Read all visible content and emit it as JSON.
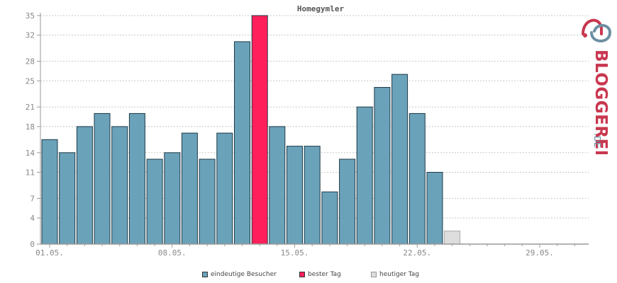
{
  "chart_data": {
    "type": "bar",
    "title": "Homegymler",
    "x_tick_labels": [
      "01.05.",
      "08.05.",
      "15.05.",
      "22.05.",
      "29.05."
    ],
    "y_ticks": [
      0,
      4,
      7,
      11,
      14,
      18,
      21,
      25,
      28,
      32,
      35
    ],
    "ylim": [
      0,
      35
    ],
    "values": [
      16,
      14,
      18,
      20,
      18,
      20,
      13,
      14,
      17,
      13,
      17,
      31,
      35,
      18,
      15,
      15,
      8,
      13,
      21,
      24,
      26,
      20,
      11,
      2
    ],
    "best_day_index": 12,
    "today_index": 23,
    "days_in_axis": 31,
    "grid": true,
    "legend_placement": "bottom"
  },
  "legend": {
    "unique": "eindeutige Besucher",
    "best": "bester Tag",
    "today": "heutiger Tag"
  },
  "colors": {
    "bar": "#6aa2b9",
    "best": "#ff1f5a",
    "today": "#dddddd",
    "outline": "#1e3a48",
    "grid": "#c8c8c8",
    "axis": "#999999"
  },
  "logo": {
    "text": "BLOGGEREI",
    "suffix": ".DE"
  }
}
